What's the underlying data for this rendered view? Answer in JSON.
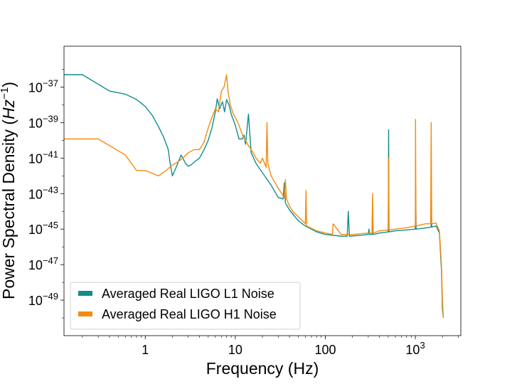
{
  "chart_data": {
    "type": "line",
    "xlabel": "Frequency (Hz)",
    "ylabel_main": "Power Spectral Density (",
    "ylabel_unit": "Hz",
    "ylabel_exp": "−1",
    "ylabel_close": ")",
    "x_scale": "log",
    "y_scale": "log",
    "xlim": [
      0.125,
      3200
    ],
    "ylim": [
      1e-51,
      2e-35
    ],
    "grid": false,
    "legend_position": "lower-left",
    "x_ticks": [
      {
        "value": 1,
        "label": "1"
      },
      {
        "value": 10,
        "label": "10"
      },
      {
        "value": 100,
        "label": "100"
      },
      {
        "value": 1000,
        "base": "10",
        "exp": "3"
      }
    ],
    "y_ticks": [
      {
        "value": 1e-37,
        "base": "10",
        "exp": "−37"
      },
      {
        "value": 1e-39,
        "base": "10",
        "exp": "−39"
      },
      {
        "value": 1e-41,
        "base": "10",
        "exp": "−41"
      },
      {
        "value": 1e-43,
        "base": "10",
        "exp": "−43"
      },
      {
        "value": 1e-45,
        "base": "10",
        "exp": "−45"
      },
      {
        "value": 1e-47,
        "base": "10",
        "exp": "−47"
      },
      {
        "value": 1e-49,
        "base": "10",
        "exp": "−49"
      }
    ],
    "series": [
      {
        "name": "Averaged Real LIGO L1 Noise",
        "color": "#138c8c",
        "points": [
          [
            0.125,
            5e-37
          ],
          [
            0.2,
            5e-37
          ],
          [
            0.4,
            6e-38
          ],
          [
            0.6,
            4e-38
          ],
          [
            0.8,
            2e-38
          ],
          [
            1.0,
            8e-39
          ],
          [
            1.2,
            2.5e-39
          ],
          [
            1.4,
            6e-40
          ],
          [
            1.6,
            1.5e-40
          ],
          [
            1.8,
            3e-41
          ],
          [
            1.9,
            4e-42
          ],
          [
            2.0,
            1e-42
          ],
          [
            2.2,
            3e-42
          ],
          [
            2.5,
            1.5e-41
          ],
          [
            2.8,
            5e-42
          ],
          [
            3.0,
            3.5e-42
          ],
          [
            3.2,
            4e-42
          ],
          [
            3.5,
            6e-42
          ],
          [
            4.0,
            1e-41
          ],
          [
            4.5,
            3e-41
          ],
          [
            5.0,
            1e-40
          ],
          [
            5.5,
            5e-40
          ],
          [
            6.0,
            4e-39
          ],
          [
            6.3,
            2.2e-38
          ],
          [
            6.7,
            6e-39
          ],
          [
            7.2,
            1.5e-38
          ],
          [
            7.6,
            4e-39
          ],
          [
            8.0,
            2e-38
          ],
          [
            8.5,
            1e-38
          ],
          [
            9.0,
            3e-39
          ],
          [
            10.0,
            7e-40
          ],
          [
            11.0,
            1.2e-40
          ],
          [
            12.0,
            1.2e-40
          ],
          [
            12.5,
            2e-40
          ],
          [
            13.0,
            6e-41
          ],
          [
            14.0,
            3e-39
          ],
          [
            15.0,
            2e-41
          ],
          [
            17.0,
            5e-42
          ],
          [
            20.0,
            1.5e-42
          ],
          [
            25.0,
            3e-43
          ],
          [
            30.0,
            6e-44
          ],
          [
            34.0,
            5e-44
          ],
          [
            35.0,
            4e-43
          ],
          [
            36.0,
            3e-44
          ],
          [
            40.0,
            1.2e-44
          ],
          [
            50.0,
            3e-45
          ],
          [
            60.0,
            1.5e-45
          ],
          [
            70.0,
            1e-45
          ],
          [
            80.0,
            7e-46
          ],
          [
            100.0,
            5e-46
          ],
          [
            150.0,
            4e-46
          ],
          [
            175.0,
            4e-46
          ],
          [
            180.0,
            1e-44
          ],
          [
            185.0,
            4e-46
          ],
          [
            250.0,
            4.5e-46
          ],
          [
            300.0,
            5e-46
          ],
          [
            305.0,
            1e-45
          ],
          [
            310.0,
            5e-46
          ],
          [
            330.0,
            5e-46
          ],
          [
            335.0,
            2e-44
          ],
          [
            340.0,
            5e-46
          ],
          [
            400.0,
            6e-46
          ],
          [
            500.0,
            7e-46
          ],
          [
            505.0,
            4e-40
          ],
          [
            510.0,
            7e-46
          ],
          [
            600.0,
            8e-46
          ],
          [
            800.0,
            9e-46
          ],
          [
            1000.0,
            1e-45
          ],
          [
            1010.0,
            2e-43
          ],
          [
            1020.0,
            1e-45
          ],
          [
            1200.0,
            1.1e-45
          ],
          [
            1500.0,
            1.3e-45
          ],
          [
            1510.0,
            6e-44
          ],
          [
            1520.0,
            1.3e-45
          ],
          [
            1700.0,
            1.5e-45
          ],
          [
            1850.0,
            6e-46
          ],
          [
            1950.0,
            5e-48
          ],
          [
            2000.0,
            3e-50
          ],
          [
            2048.0,
            1e-50
          ]
        ]
      },
      {
        "name": "Averaged Real LIGO H1 Noise",
        "color": "#f28c0f",
        "points": [
          [
            0.125,
            1.2e-40
          ],
          [
            0.3,
            1.2e-40
          ],
          [
            0.6,
            1.5e-41
          ],
          [
            0.8,
            2e-42
          ],
          [
            1.0,
            2e-42
          ],
          [
            1.4,
            1e-42
          ],
          [
            1.7,
            2e-42
          ],
          [
            2.0,
            4e-42
          ],
          [
            2.3,
            6e-42
          ],
          [
            2.6,
            1e-41
          ],
          [
            3.0,
            2e-41
          ],
          [
            3.5,
            3e-41
          ],
          [
            4.0,
            3e-41
          ],
          [
            4.5,
            8e-41
          ],
          [
            5.0,
            5e-40
          ],
          [
            5.5,
            2e-39
          ],
          [
            6.0,
            6e-39
          ],
          [
            6.5,
            4e-39
          ],
          [
            7.0,
            6e-38
          ],
          [
            7.5,
            1e-37
          ],
          [
            8.0,
            5e-37
          ],
          [
            8.3,
            6e-38
          ],
          [
            8.8,
            1e-38
          ],
          [
            9.5,
            3e-39
          ],
          [
            10.0,
            2e-39
          ],
          [
            11.0,
            7e-40
          ],
          [
            12.0,
            2e-40
          ],
          [
            13.0,
            1e-40
          ],
          [
            14.0,
            5e-41
          ],
          [
            15.0,
            3e-41
          ],
          [
            17.0,
            1e-41
          ],
          [
            19.0,
            5e-42
          ],
          [
            20.0,
            1e-41
          ],
          [
            22.0,
            3e-42
          ],
          [
            22.5,
            1e-39
          ],
          [
            23.0,
            5e-42
          ],
          [
            25.0,
            1e-42
          ],
          [
            30.0,
            2e-43
          ],
          [
            35.0,
            6e-44
          ],
          [
            36.0,
            6e-43
          ],
          [
            37.0,
            5e-44
          ],
          [
            40.0,
            2e-44
          ],
          [
            45.0,
            8e-45
          ],
          [
            50.0,
            5e-45
          ],
          [
            60.0,
            2e-45
          ],
          [
            61.0,
            1.5e-43
          ],
          [
            62.0,
            1.5e-45
          ],
          [
            80.0,
            8e-46
          ],
          [
            100.0,
            6e-46
          ],
          [
            120.0,
            5e-46
          ],
          [
            122.0,
            2e-45
          ],
          [
            150.0,
            5e-46
          ],
          [
            200.0,
            5e-46
          ],
          [
            300.0,
            6e-46
          ],
          [
            330.0,
            6e-46
          ],
          [
            335.0,
            1e-43
          ],
          [
            340.0,
            6e-46
          ],
          [
            400.0,
            8e-46
          ],
          [
            500.0,
            9e-46
          ],
          [
            505.0,
            1e-41
          ],
          [
            510.0,
            9e-46
          ],
          [
            800.0,
            1.2e-45
          ],
          [
            1000.0,
            1.5e-45
          ],
          [
            1005.0,
            1.5e-39
          ],
          [
            1015.0,
            1.5e-45
          ],
          [
            1300.0,
            2e-45
          ],
          [
            1480.0,
            2e-45
          ],
          [
            1500.0,
            1e-39
          ],
          [
            1520.0,
            2e-45
          ],
          [
            1700.0,
            2.2e-45
          ],
          [
            1850.0,
            8e-46
          ],
          [
            1950.0,
            1e-47
          ],
          [
            2000.0,
            1e-49
          ],
          [
            2048.0,
            1e-50
          ]
        ]
      }
    ]
  }
}
